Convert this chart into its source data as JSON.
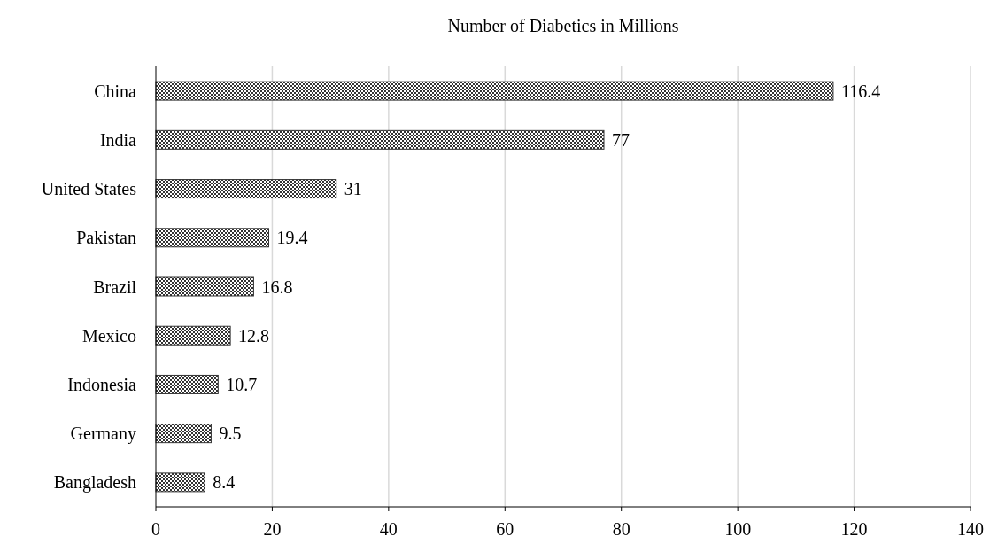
{
  "chart_data": {
    "type": "bar",
    "orientation": "horizontal",
    "title": "Number of Diabetics in Millions",
    "categories": [
      "China",
      "India",
      "United States",
      "Pakistan",
      "Brazil",
      "Mexico",
      "Indonesia",
      "Germany",
      "Bangladesh"
    ],
    "values": [
      116.4,
      77,
      31,
      19.4,
      16.8,
      12.8,
      10.7,
      9.5,
      8.4
    ],
    "color": "#333333",
    "xlim": [
      0,
      140
    ],
    "xticks": [
      0,
      20,
      40,
      60,
      80,
      100,
      120,
      140
    ],
    "grid": "x",
    "data_labels": true
  }
}
